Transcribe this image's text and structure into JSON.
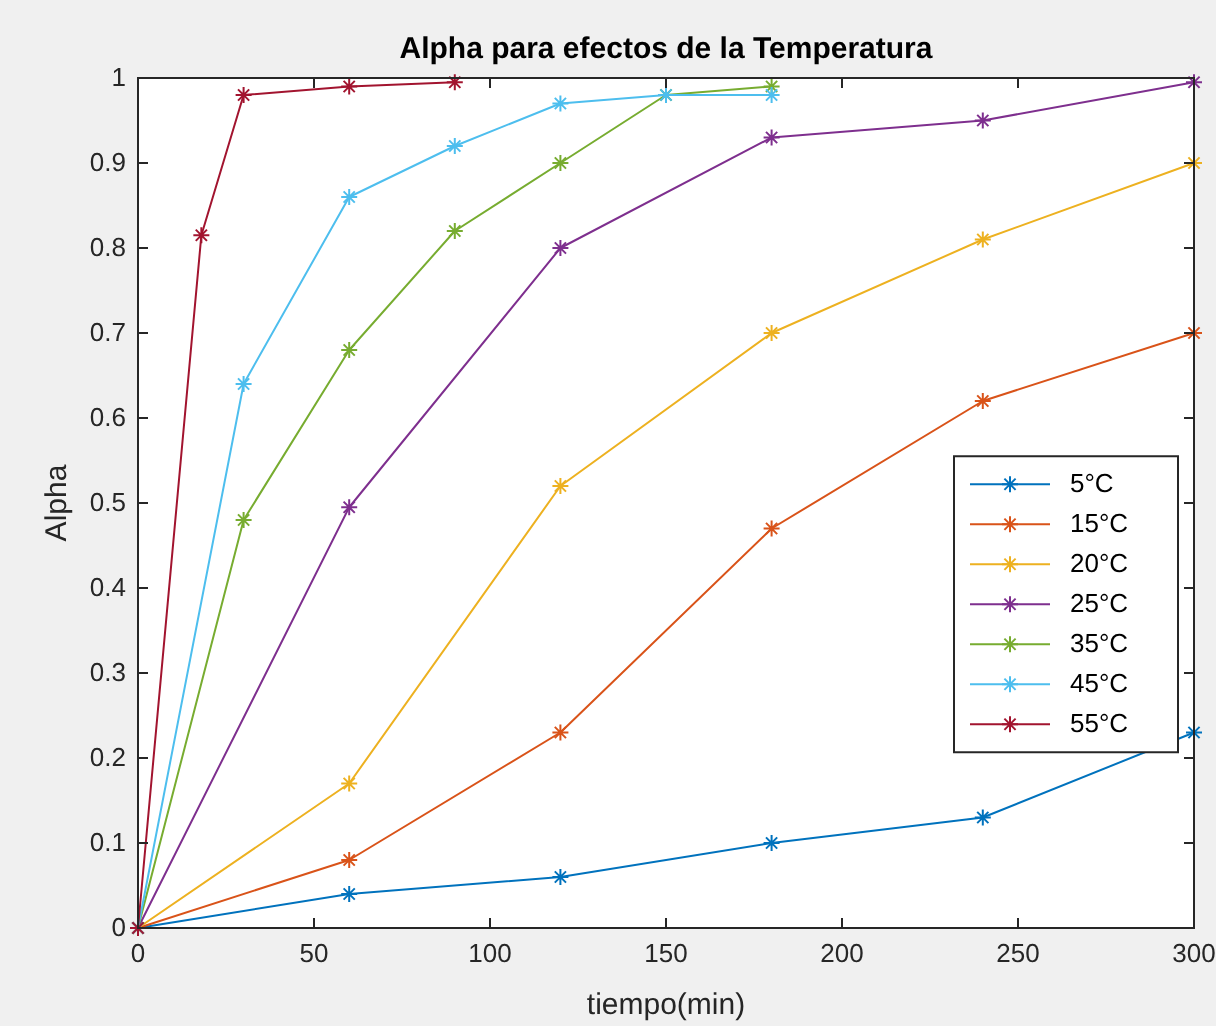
{
  "chart_data": {
    "type": "line",
    "title": "Alpha para efectos de la Temperatura",
    "xlabel": "tiempo(min)",
    "ylabel": "Alpha",
    "xlim": [
      0,
      300
    ],
    "xticks": [
      0,
      50,
      100,
      150,
      200,
      250,
      300
    ],
    "ylim": [
      0,
      1
    ],
    "yticks": [
      0,
      0.1,
      0.2,
      0.3,
      0.4,
      0.5,
      0.6,
      0.7,
      0.8,
      0.9,
      1
    ],
    "marker": "cross",
    "line_style": "solid",
    "grid": false,
    "legend": "right",
    "series": [
      {
        "name": "5°C",
        "color": "#0072bd",
        "x": [
          0,
          60,
          120,
          180,
          240,
          300
        ],
        "values": [
          0,
          0.04,
          0.06,
          0.1,
          0.13,
          0.23
        ]
      },
      {
        "name": "15°C",
        "color": "#d95319",
        "x": [
          0,
          60,
          120,
          180,
          240,
          300
        ],
        "values": [
          0,
          0.08,
          0.23,
          0.47,
          0.62,
          0.7
        ]
      },
      {
        "name": "20°C",
        "color": "#edb120",
        "x": [
          0,
          60,
          120,
          180,
          240,
          300
        ],
        "values": [
          0,
          0.17,
          0.52,
          0.7,
          0.81,
          0.9
        ]
      },
      {
        "name": "25°C",
        "color": "#7e2f8e",
        "x": [
          0,
          60,
          120,
          180,
          240,
          300
        ],
        "values": [
          0,
          0.495,
          0.8,
          0.93,
          0.95,
          0.995
        ]
      },
      {
        "name": "35°C",
        "color": "#77ac30",
        "x": [
          0,
          30,
          60,
          90,
          120,
          150,
          180
        ],
        "values": [
          0,
          0.48,
          0.68,
          0.82,
          0.9,
          0.98,
          0.99
        ]
      },
      {
        "name": "45°C",
        "color": "#4dbeee",
        "x": [
          0,
          30,
          60,
          90,
          120,
          150,
          180
        ],
        "values": [
          0,
          0.64,
          0.86,
          0.92,
          0.97,
          0.98,
          0.98
        ]
      },
      {
        "name": "55°C",
        "color": "#a2142f",
        "x": [
          0,
          18,
          30,
          60,
          90
        ],
        "values": [
          0,
          0.815,
          0.98,
          0.99,
          0.995
        ]
      }
    ]
  }
}
